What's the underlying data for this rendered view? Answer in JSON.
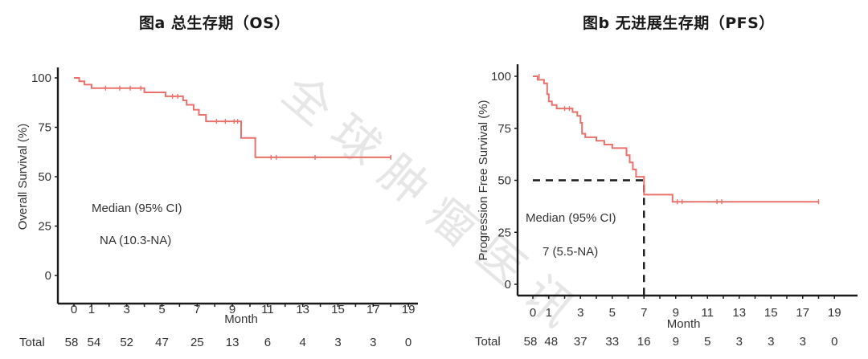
{
  "titles": {
    "a": "图a  总生存期（OS）",
    "b": "图b  无进展生存期（PFS）"
  },
  "watermark": "全球肿瘤医讯",
  "colors": {
    "curve": "#e8726b",
    "axis": "#1a1a1a",
    "median_line": "#1a1a1a",
    "text": "#333333"
  },
  "chart_data": [
    {
      "type": "line",
      "subtype": "kaplan-meier-step",
      "title": "图a  总生存期（OS）",
      "xlabel": "Month",
      "ylabel": "Overall Survival (%)",
      "xlim": [
        0,
        19
      ],
      "ylim": [
        0,
        100
      ],
      "x_ticks": [
        0,
        1,
        3,
        5,
        7,
        9,
        11,
        13,
        15,
        17,
        19
      ],
      "y_ticks": [
        0,
        25,
        50,
        75,
        100
      ],
      "steps": [
        [
          0,
          100
        ],
        [
          0.3,
          100
        ],
        [
          0.3,
          98.3
        ],
        [
          0.6,
          98.3
        ],
        [
          0.6,
          96.6
        ],
        [
          1.0,
          96.6
        ],
        [
          1.0,
          94.8
        ],
        [
          4.0,
          94.8
        ],
        [
          4.0,
          92.7
        ],
        [
          5.2,
          92.7
        ],
        [
          5.2,
          90.7
        ],
        [
          6.2,
          90.7
        ],
        [
          6.2,
          88.6
        ],
        [
          6.4,
          88.6
        ],
        [
          6.4,
          86.4
        ],
        [
          6.8,
          86.4
        ],
        [
          6.8,
          83.9
        ],
        [
          7.1,
          83.9
        ],
        [
          7.1,
          81.3
        ],
        [
          7.5,
          81.3
        ],
        [
          7.5,
          78.0
        ],
        [
          9.5,
          78.0
        ],
        [
          9.5,
          69.6
        ],
        [
          10.3,
          69.6
        ],
        [
          10.3,
          59.8
        ],
        [
          18.0,
          59.8
        ]
      ],
      "censor_marks": [
        [
          1.8,
          94.8
        ],
        [
          2.6,
          94.8
        ],
        [
          3.2,
          94.8
        ],
        [
          3.8,
          94.8
        ],
        [
          5.6,
          90.7
        ],
        [
          5.9,
          90.7
        ],
        [
          8.1,
          78.0
        ],
        [
          8.6,
          78.0
        ],
        [
          9.1,
          78.0
        ],
        [
          9.3,
          78.0
        ],
        [
          11.2,
          59.8
        ],
        [
          11.5,
          59.8
        ],
        [
          13.7,
          59.8
        ],
        [
          18.0,
          59.8
        ]
      ],
      "annotations": [
        "Median (95% CI)",
        "NA (10.3-NA)"
      ],
      "risk_table": {
        "label": "Total",
        "months": [
          0,
          1,
          3,
          5,
          7,
          9,
          11,
          13,
          15,
          17,
          19
        ],
        "at_risk": [
          58,
          54,
          52,
          47,
          25,
          13,
          6,
          4,
          3,
          3,
          0
        ]
      }
    },
    {
      "type": "line",
      "subtype": "kaplan-meier-step",
      "title": "图b  无进展生存期（PFS）",
      "xlabel": "Month",
      "ylabel": "Progression Free Survival (%)",
      "xlim": [
        0,
        19
      ],
      "ylim": [
        0,
        100
      ],
      "x_ticks": [
        0,
        1,
        3,
        5,
        7,
        9,
        11,
        13,
        15,
        17,
        19
      ],
      "y_ticks": [
        0,
        25,
        50,
        75,
        100
      ],
      "steps": [
        [
          0,
          100
        ],
        [
          0.3,
          100
        ],
        [
          0.3,
          98.3
        ],
        [
          0.7,
          98.3
        ],
        [
          0.7,
          96.6
        ],
        [
          0.9,
          96.6
        ],
        [
          0.9,
          91.4
        ],
        [
          1.0,
          91.4
        ],
        [
          1.0,
          87.9
        ],
        [
          1.2,
          87.9
        ],
        [
          1.2,
          86.2
        ],
        [
          1.5,
          86.2
        ],
        [
          1.5,
          84.5
        ],
        [
          2.5,
          84.5
        ],
        [
          2.5,
          82.8
        ],
        [
          2.8,
          82.8
        ],
        [
          2.8,
          81.0
        ],
        [
          3.0,
          81.0
        ],
        [
          3.0,
          77.6
        ],
        [
          3.1,
          77.6
        ],
        [
          3.1,
          72.4
        ],
        [
          3.3,
          72.4
        ],
        [
          3.3,
          70.7
        ],
        [
          4.0,
          70.7
        ],
        [
          4.0,
          69.0
        ],
        [
          4.5,
          69.0
        ],
        [
          4.5,
          67.2
        ],
        [
          5.0,
          67.2
        ],
        [
          5.0,
          65.5
        ],
        [
          5.9,
          65.5
        ],
        [
          5.9,
          62.1
        ],
        [
          6.1,
          62.1
        ],
        [
          6.1,
          58.6
        ],
        [
          6.3,
          58.6
        ],
        [
          6.3,
          55.2
        ],
        [
          6.5,
          55.2
        ],
        [
          6.5,
          51.7
        ],
        [
          7.0,
          51.7
        ],
        [
          7.0,
          43.1
        ],
        [
          8.8,
          43.1
        ],
        [
          8.8,
          39.7
        ],
        [
          18.0,
          39.7
        ]
      ],
      "censor_marks": [
        [
          0.4,
          100
        ],
        [
          2.0,
          84.5
        ],
        [
          2.3,
          84.5
        ],
        [
          9.1,
          39.7
        ],
        [
          9.4,
          39.7
        ],
        [
          11.6,
          39.7
        ],
        [
          11.9,
          39.7
        ],
        [
          18.0,
          39.7
        ]
      ],
      "median_line": {
        "x": 7,
        "y": 50
      },
      "annotations": [
        "Median (95% CI)",
        "7 (5.5-NA)"
      ],
      "risk_table": {
        "label": "Total",
        "months": [
          0,
          1,
          3,
          5,
          7,
          9,
          11,
          13,
          15,
          17,
          19
        ],
        "at_risk": [
          58,
          48,
          37,
          33,
          16,
          9,
          5,
          3,
          3,
          3,
          0
        ]
      }
    }
  ]
}
